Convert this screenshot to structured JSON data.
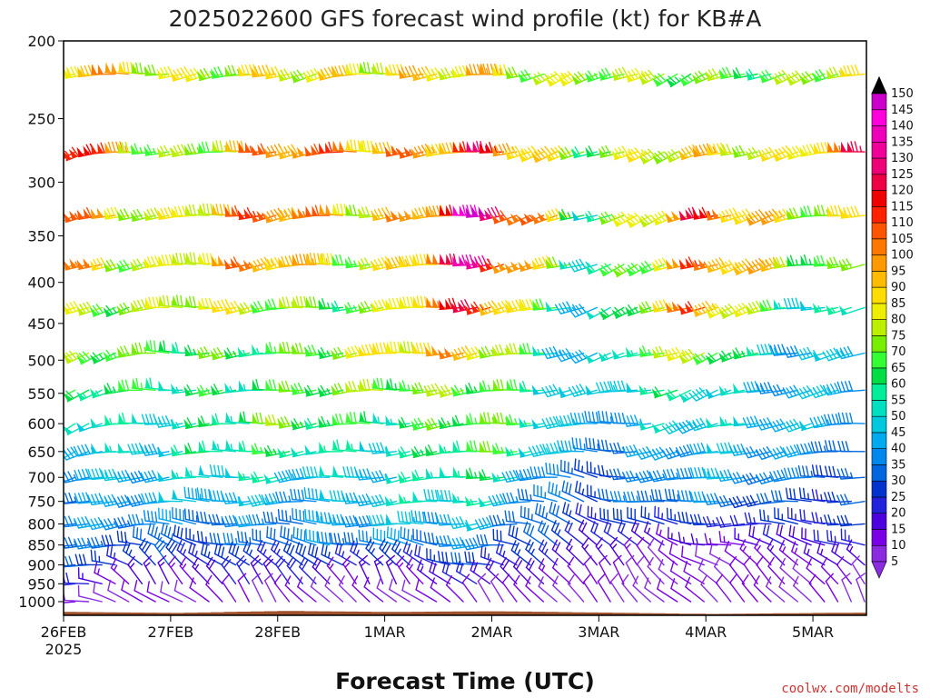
{
  "chart_data": {
    "type": "wind-barb-time-height",
    "title": "2025022600 GFS forecast wind profile (kt) for KB#A",
    "xlabel": "Forecast Time (UTC)",
    "ylabel": "",
    "credit": "coolwx.com/modelts",
    "credit_color": "#cc3333",
    "x_ticks": [
      {
        "t": 0,
        "label": "26FEB",
        "sub": "2025"
      },
      {
        "t": 24,
        "label": "27FEB",
        "sub": ""
      },
      {
        "t": 48,
        "label": "28FEB",
        "sub": ""
      },
      {
        "t": 72,
        "label": "1MAR",
        "sub": ""
      },
      {
        "t": 96,
        "label": "2MAR",
        "sub": ""
      },
      {
        "t": 120,
        "label": "3MAR",
        "sub": ""
      },
      {
        "t": 144,
        "label": "4MAR",
        "sub": ""
      },
      {
        "t": 168,
        "label": "5MAR",
        "sub": ""
      }
    ],
    "x_range_hours": [
      0,
      180
    ],
    "y_axis": "pressure (hPa), log scale, inverted",
    "y_range": [
      1040,
      200
    ],
    "y_ticks": [
      200,
      250,
      300,
      350,
      400,
      450,
      500,
      550,
      600,
      650,
      700,
      750,
      800,
      850,
      900,
      950,
      1000
    ],
    "levels": [
      220,
      275,
      330,
      380,
      430,
      490,
      545,
      600,
      650,
      700,
      750,
      800,
      850,
      900,
      950,
      1000
    ],
    "step_hours": 3,
    "speed_breaks": [
      5,
      10,
      15,
      20,
      25,
      30,
      35,
      40,
      45,
      50,
      55,
      60,
      65,
      70,
      75,
      80,
      85,
      90,
      95,
      100,
      105,
      110,
      115,
      120,
      125,
      130,
      135,
      140,
      145,
      150
    ],
    "speed_colors": [
      "#8a2be2",
      "#7a00e6",
      "#4b00dd",
      "#2222dd",
      "#0033cc",
      "#0066dd",
      "#0088ee",
      "#00aaee",
      "#00c8dd",
      "#00e0c0",
      "#00ee99",
      "#00dd44",
      "#33ff33",
      "#77ee00",
      "#bbee00",
      "#eeee00",
      "#ffdd00",
      "#ffbb00",
      "#ff9900",
      "#ff7700",
      "#ff5500",
      "#ff2200",
      "#ee0000",
      "#ee0044",
      "#ee0077",
      "#ee0099",
      "#ee00bb",
      "#ff00dd",
      "#cc00cc"
    ],
    "wind_keyframes": {
      "220": [
        [
          0,
          95,
          270
        ],
        [
          24,
          75,
          265
        ],
        [
          48,
          90,
          255
        ],
        [
          72,
          75,
          265
        ],
        [
          96,
          95,
          262
        ],
        [
          120,
          70,
          245
        ],
        [
          144,
          70,
          248
        ],
        [
          168,
          75,
          252
        ],
        [
          180,
          80,
          255
        ]
      ],
      "275": [
        [
          0,
          125,
          245
        ],
        [
          24,
          70,
          268
        ],
        [
          48,
          100,
          262
        ],
        [
          72,
          90,
          266
        ],
        [
          96,
          120,
          262
        ],
        [
          120,
          60,
          248
        ],
        [
          144,
          95,
          250
        ],
        [
          168,
          75,
          258
        ],
        [
          180,
          105,
          262
        ]
      ],
      "330": [
        [
          0,
          110,
          240
        ],
        [
          24,
          80,
          268
        ],
        [
          48,
          100,
          262
        ],
        [
          72,
          85,
          266
        ],
        [
          96,
          135,
          260
        ],
        [
          120,
          55,
          248
        ],
        [
          144,
          115,
          250
        ],
        [
          168,
          70,
          258
        ],
        [
          180,
          80,
          262
        ]
      ],
      "380": [
        [
          0,
          110,
          240
        ],
        [
          24,
          75,
          268
        ],
        [
          48,
          95,
          262
        ],
        [
          72,
          80,
          266
        ],
        [
          96,
          120,
          262
        ],
        [
          120,
          55,
          248
        ],
        [
          144,
          100,
          250
        ],
        [
          168,
          70,
          258
        ],
        [
          180,
          70,
          262
        ]
      ],
      "430": [
        [
          0,
          85,
          240
        ],
        [
          24,
          70,
          268
        ],
        [
          48,
          80,
          262
        ],
        [
          72,
          70,
          266
        ],
        [
          96,
          110,
          262
        ],
        [
          120,
          45,
          250
        ],
        [
          144,
          95,
          250
        ],
        [
          168,
          55,
          258
        ],
        [
          180,
          55,
          262
        ]
      ],
      "490": [
        [
          0,
          75,
          240
        ],
        [
          24,
          60,
          268
        ],
        [
          48,
          70,
          262
        ],
        [
          72,
          75,
          266
        ],
        [
          96,
          95,
          262
        ],
        [
          120,
          40,
          255
        ],
        [
          144,
          75,
          250
        ],
        [
          168,
          45,
          258
        ],
        [
          180,
          45,
          262
        ]
      ],
      "545": [
        [
          0,
          55,
          245
        ],
        [
          24,
          60,
          268
        ],
        [
          48,
          65,
          262
        ],
        [
          72,
          65,
          266
        ],
        [
          96,
          80,
          262
        ],
        [
          120,
          40,
          262
        ],
        [
          144,
          60,
          250
        ],
        [
          168,
          40,
          258
        ],
        [
          180,
          40,
          262
        ]
      ],
      "600": [
        [
          0,
          50,
          245
        ],
        [
          24,
          55,
          268
        ],
        [
          48,
          65,
          265
        ],
        [
          72,
          60,
          266
        ],
        [
          96,
          75,
          262
        ],
        [
          120,
          35,
          270
        ],
        [
          144,
          55,
          252
        ],
        [
          168,
          40,
          260
        ],
        [
          180,
          40,
          262
        ]
      ],
      "650": [
        [
          0,
          45,
          245
        ],
        [
          24,
          55,
          268
        ],
        [
          48,
          55,
          265
        ],
        [
          72,
          55,
          266
        ],
        [
          96,
          65,
          262
        ],
        [
          120,
          35,
          270
        ],
        [
          144,
          45,
          255
        ],
        [
          168,
          35,
          262
        ],
        [
          180,
          35,
          262
        ]
      ],
      "700": [
        [
          0,
          45,
          245
        ],
        [
          24,
          45,
          268
        ],
        [
          48,
          50,
          265
        ],
        [
          72,
          50,
          266
        ],
        [
          96,
          55,
          262
        ],
        [
          120,
          30,
          280
        ],
        [
          144,
          40,
          258
        ],
        [
          168,
          35,
          265
        ],
        [
          180,
          35,
          265
        ]
      ],
      "750": [
        [
          0,
          40,
          250
        ],
        [
          24,
          40,
          270
        ],
        [
          48,
          45,
          268
        ],
        [
          72,
          45,
          268
        ],
        [
          96,
          50,
          262
        ],
        [
          120,
          30,
          290
        ],
        [
          144,
          35,
          262
        ],
        [
          168,
          30,
          268
        ],
        [
          180,
          30,
          268
        ]
      ],
      "800": [
        [
          0,
          35,
          250
        ],
        [
          24,
          35,
          275
        ],
        [
          48,
          40,
          272
        ],
        [
          72,
          40,
          272
        ],
        [
          96,
          45,
          262
        ],
        [
          120,
          25,
          300
        ],
        [
          144,
          25,
          270
        ],
        [
          168,
          25,
          275
        ],
        [
          180,
          25,
          275
        ]
      ],
      "850": [
        [
          0,
          30,
          255
        ],
        [
          24,
          30,
          290
        ],
        [
          48,
          35,
          280
        ],
        [
          72,
          35,
          285
        ],
        [
          96,
          40,
          268
        ],
        [
          120,
          20,
          320
        ],
        [
          144,
          15,
          280
        ],
        [
          168,
          20,
          290
        ],
        [
          180,
          20,
          290
        ]
      ],
      "900": [
        [
          0,
          25,
          260
        ],
        [
          24,
          30,
          315
        ],
        [
          48,
          25,
          300
        ],
        [
          72,
          25,
          310
        ],
        [
          96,
          30,
          280
        ],
        [
          120,
          15,
          330
        ],
        [
          144,
          10,
          300
        ],
        [
          168,
          15,
          310
        ],
        [
          180,
          15,
          310
        ]
      ],
      "950": [
        [
          0,
          20,
          265
        ],
        [
          24,
          15,
          330
        ],
        [
          48,
          20,
          320
        ],
        [
          72,
          15,
          330
        ],
        [
          96,
          20,
          300
        ],
        [
          120,
          10,
          330
        ],
        [
          144,
          10,
          310
        ],
        [
          168,
          10,
          320
        ],
        [
          180,
          10,
          320
        ]
      ],
      "1000": [
        [
          0,
          10,
          270
        ],
        [
          24,
          10,
          300
        ],
        [
          48,
          10,
          330
        ],
        [
          72,
          10,
          300
        ],
        [
          96,
          10,
          320
        ],
        [
          120,
          10,
          320
        ],
        [
          144,
          10,
          310
        ],
        [
          168,
          10,
          320
        ],
        [
          180,
          10,
          330
        ]
      ]
    },
    "terrain_pressure": [
      [
        0,
        1030
      ],
      [
        24,
        1033
      ],
      [
        48,
        1027
      ],
      [
        72,
        1030
      ],
      [
        96,
        1028
      ],
      [
        120,
        1032
      ],
      [
        144,
        1036
      ],
      [
        168,
        1033
      ],
      [
        180,
        1032
      ]
    ],
    "terrain_color": "#a0522d"
  }
}
